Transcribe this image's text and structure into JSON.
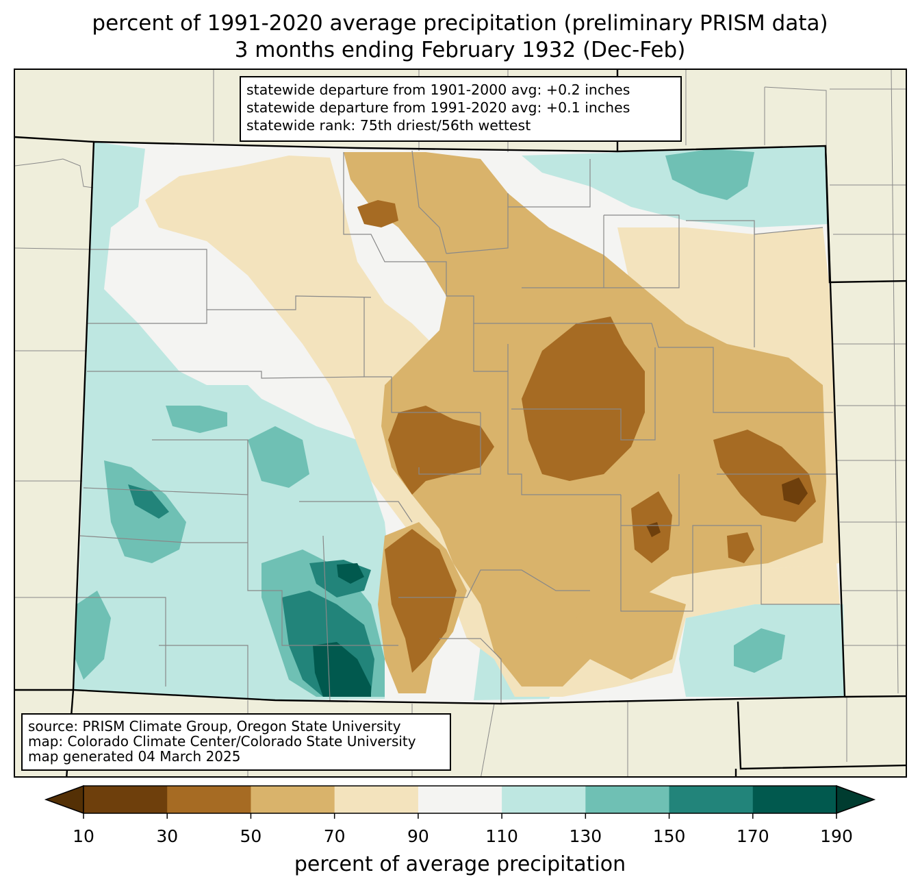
{
  "title": {
    "line1": "percent of 1991-2020 average precipitation (preliminary PRISM data)",
    "line2": "3 months ending February 1932 (Dec-Feb)"
  },
  "stats": {
    "line1": "statewide departure from 1901-2000 avg: +0.2 inches",
    "line2": "statewide departure from 1991-2020 avg: +0.1 inches",
    "line3": "statewide rank: 75th driest/56th wettest"
  },
  "source": {
    "line1": "source: PRISM Climate Group, Oregon State University",
    "line2": "map: Colorado Climate Center/Colorado State University",
    "line3": "map generated 04 March 2025"
  },
  "colorbar": {
    "label": "percent of average precipitation",
    "ticks": [
      "10",
      "30",
      "50",
      "70",
      "90",
      "110",
      "130",
      "150",
      "170",
      "190"
    ],
    "bins": [
      {
        "range": "<10",
        "color": "#543005"
      },
      {
        "range": "10-30",
        "color": "#6e3f0c"
      },
      {
        "range": "30-50",
        "color": "#a66b23"
      },
      {
        "range": "50-70",
        "color": "#d9b36b"
      },
      {
        "range": "70-90",
        "color": "#f3e3bd"
      },
      {
        "range": "90-110",
        "color": "#f4f4f2"
      },
      {
        "range": "110-130",
        "color": "#bee7e1"
      },
      {
        "range": "130-150",
        "color": "#6fc0b4"
      },
      {
        "range": "150-170",
        "color": "#22847a"
      },
      {
        "range": "170-190",
        "color": "#01594e"
      },
      {
        "range": ">190",
        "color": "#003c30"
      }
    ]
  },
  "colors": {
    "background_land": "#efeedb",
    "county_lines": "#888888",
    "state_lines": "#000000"
  }
}
